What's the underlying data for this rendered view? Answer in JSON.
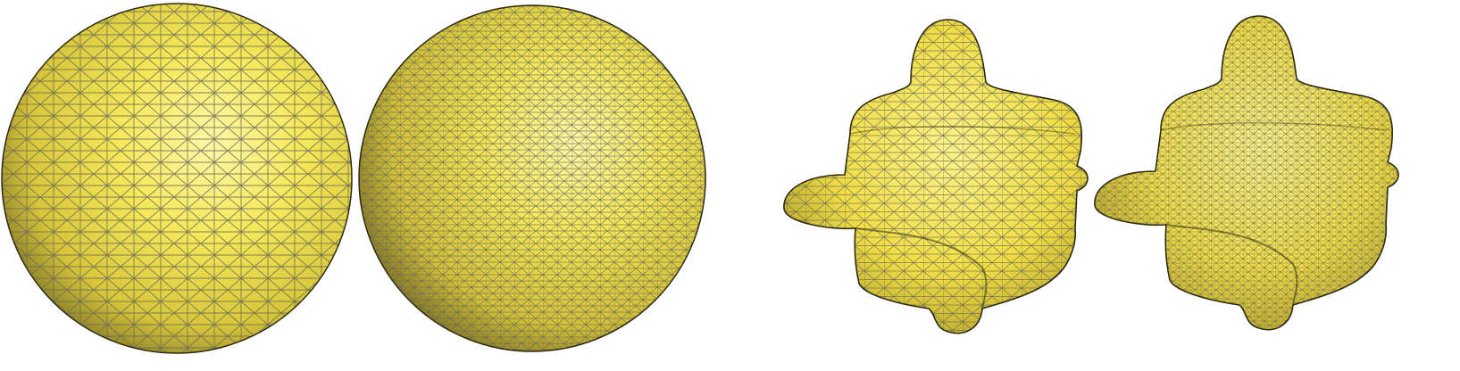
{
  "figure": {
    "background": "#ffffff",
    "surface_color": "#f2e24a",
    "highlight_color": "#fdf7a6",
    "shadow_color": "#4a4318",
    "wire_color": "#6b6a55",
    "panels": [
      {
        "name": "sphere-coarse-mesh",
        "shape": "sphere",
        "mesh": "coarse"
      },
      {
        "name": "sphere-fine-mesh",
        "shape": "sphere",
        "mesh": "fine"
      },
      {
        "name": "blob-coarse-mesh",
        "shape": "cube-with-protrusions",
        "mesh": "coarse"
      },
      {
        "name": "blob-fine-mesh",
        "shape": "cube-with-protrusions",
        "mesh": "fine"
      }
    ]
  }
}
